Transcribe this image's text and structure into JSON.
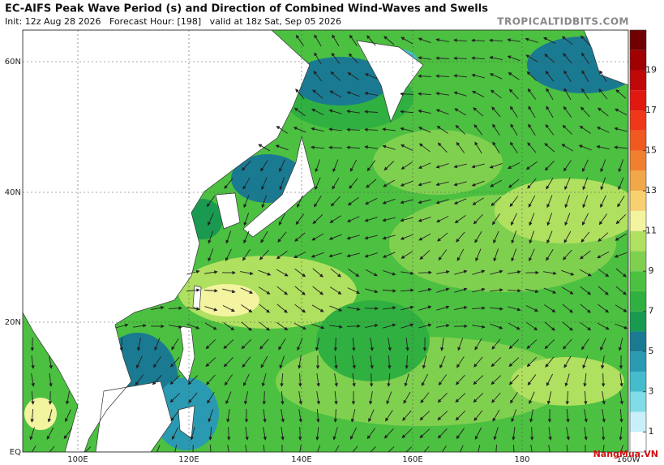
{
  "header": {
    "title": "EC-AIFS Peak Wave Period (s) and Direction of Combined Wind-Waves and Swells",
    "subtitle": "Init: 12z Aug 28 2026   Forecast Hour: [198]   valid at 18z Sat, Sep 05 2026",
    "source": "TROPICALTIDBITS.COM"
  },
  "map": {
    "lat_labels": [
      "60N",
      "40N",
      "20N",
      "EQ"
    ],
    "lon_labels": [
      "100E",
      "120E",
      "140E",
      "160E",
      "180",
      "160W"
    ]
  },
  "colorbar": {
    "lim": [
      0,
      21
    ],
    "ticks": [
      1,
      3,
      5,
      7,
      9,
      11,
      13,
      15,
      17,
      19
    ],
    "colors": [
      "#ffffff",
      "#c8f0f8",
      "#80dce8",
      "#44bccc",
      "#2a9ab2",
      "#1a7a92",
      "#1a9a50",
      "#30b040",
      "#4cc040",
      "#80d050",
      "#b0e060",
      "#f4f4a0",
      "#f8d070",
      "#f0a848",
      "#f08030",
      "#f05a20",
      "#f03818",
      "#e01810",
      "#c00808",
      "#a00000",
      "#700000"
    ]
  },
  "logo": "NangMua.VN"
}
